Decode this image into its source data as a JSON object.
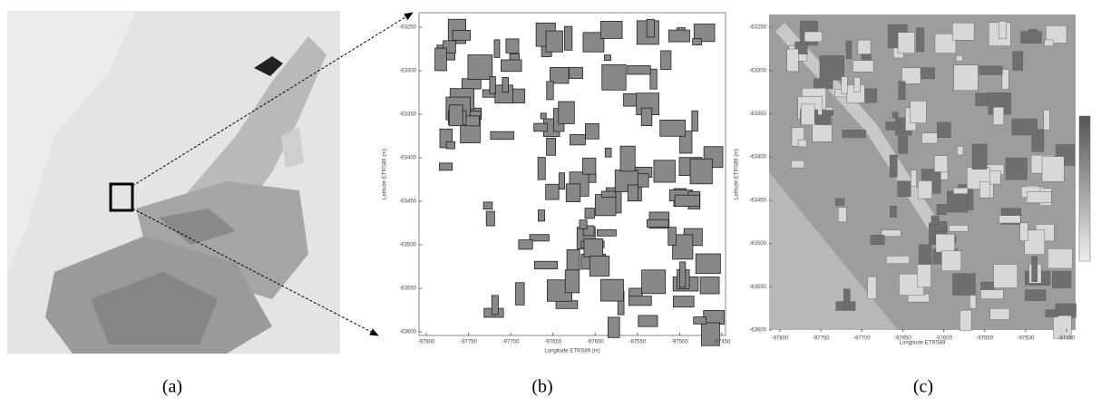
{
  "panels": [
    {
      "caption": "(a)"
    },
    {
      "caption": "(b)",
      "x_label": "Longitude ETRS89 (m)",
      "y_label": "Latitude ETRS89 (m)",
      "xticks": [
        -97800,
        -97750,
        -97700,
        -97650,
        -97600,
        -97550,
        -97500,
        -97450
      ],
      "yticks": [
        -63250,
        -63300,
        -63350,
        -63400,
        -63450,
        -63500,
        -63550,
        -63600
      ]
    },
    {
      "caption": "(c)",
      "x_label": "Longitude ETRS89",
      "y_label": "Latitude ETRS89 (m)",
      "xticks": [
        -97800,
        -97750,
        -97700,
        -97650,
        -97600,
        -97550,
        -97500,
        -97450
      ],
      "yticks": [
        -63250,
        -63300,
        -63350,
        -63400,
        -63450,
        -63500,
        -63550,
        -63600
      ]
    }
  ]
}
